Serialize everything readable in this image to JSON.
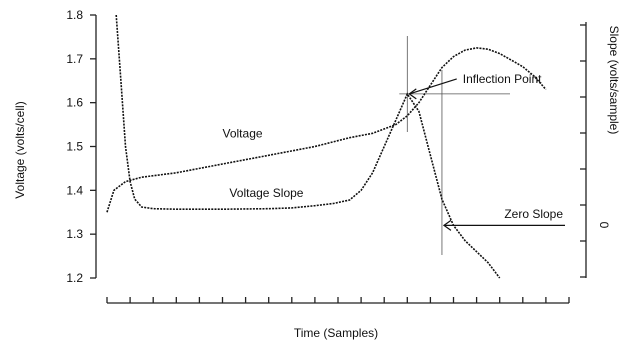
{
  "chart_data": {
    "type": "line",
    "xlabel": "Time (Samples)",
    "ylabel": "Voltage (volts/cell)",
    "y2label": "Slope (volts/sample)",
    "y2_tick_label": "0",
    "ylim": [
      1.2,
      1.8
    ],
    "yticks": [
      "1.2",
      "1.3",
      "1.4",
      "1.5",
      "1.6",
      "1.7",
      "1.8"
    ],
    "x_tick_count": 20,
    "xlim": [
      0,
      20
    ],
    "grid": false,
    "series": [
      {
        "name": "Voltage",
        "axis": "left",
        "x": [
          0,
          0.3,
          0.8,
          1.5,
          3,
          5,
          7,
          9,
          10.5,
          11.5,
          12.5,
          13,
          13.5,
          14,
          14.5,
          15,
          15.5,
          16,
          16.5,
          17,
          17.5,
          18,
          18.5,
          19
        ],
        "y": [
          1.35,
          1.4,
          1.42,
          1.43,
          1.44,
          1.46,
          1.48,
          1.5,
          1.52,
          1.53,
          1.55,
          1.57,
          1.6,
          1.64,
          1.68,
          1.705,
          1.72,
          1.725,
          1.722,
          1.712,
          1.697,
          1.682,
          1.66,
          1.63
        ]
      },
      {
        "name": "Voltage Slope",
        "axis": "right",
        "x": [
          0.4,
          0.6,
          0.8,
          1.0,
          1.2,
          1.5,
          2,
          3,
          5,
          7,
          8,
          9,
          9.8,
          10.5,
          11,
          11.5,
          12,
          12.5,
          13,
          13.5,
          14,
          14.5,
          15,
          15.5,
          16,
          16.5,
          17
        ],
        "y": [
          1.8,
          1.65,
          1.5,
          1.42,
          1.38,
          1.362,
          1.358,
          1.357,
          1.357,
          1.358,
          1.36,
          1.365,
          1.37,
          1.378,
          1.4,
          1.44,
          1.5,
          1.56,
          1.62,
          1.58,
          1.48,
          1.38,
          1.32,
          1.285,
          1.26,
          1.235,
          1.2
        ]
      }
    ],
    "annotations": [
      {
        "text": "Voltage",
        "x": 5.0,
        "y": 1.52
      },
      {
        "text": "Voltage Slope",
        "x": 5.3,
        "y": 1.385
      },
      {
        "text": "Inflection Point",
        "x": 15.4,
        "y": 1.645,
        "arrow_to": {
          "x": 13,
          "y": 1.62
        }
      },
      {
        "text": "Zero Slope",
        "x": 17.2,
        "y": 1.337,
        "arrow_to": {
          "x": 14.5,
          "y": 1.32
        }
      }
    ]
  }
}
